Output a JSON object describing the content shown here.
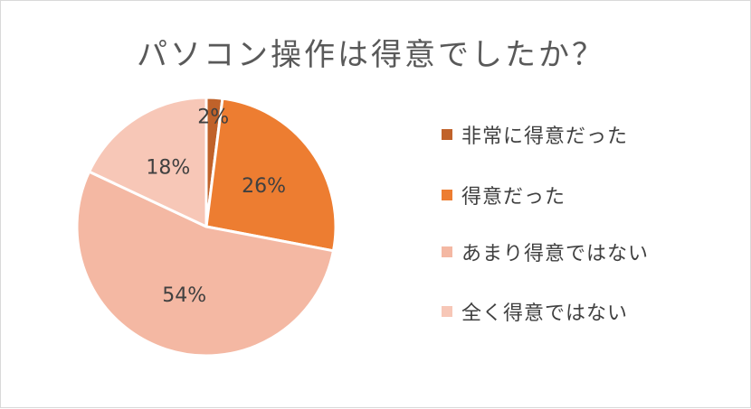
{
  "chart_data": {
    "type": "pie",
    "title": "パソコン操作は得意でしたか？",
    "categories": [
      "非常に得意だった",
      "得意だった",
      "あまり得意ではない",
      "全く得意ではない"
    ],
    "values": [
      2,
      26,
      54,
      18
    ],
    "data_labels": [
      "2%",
      "26%",
      "54%",
      "18%"
    ],
    "colors": [
      "#c0622a",
      "#ed7d31",
      "#f4b8a3",
      "#f7c7b7"
    ],
    "legend_position": "right"
  }
}
